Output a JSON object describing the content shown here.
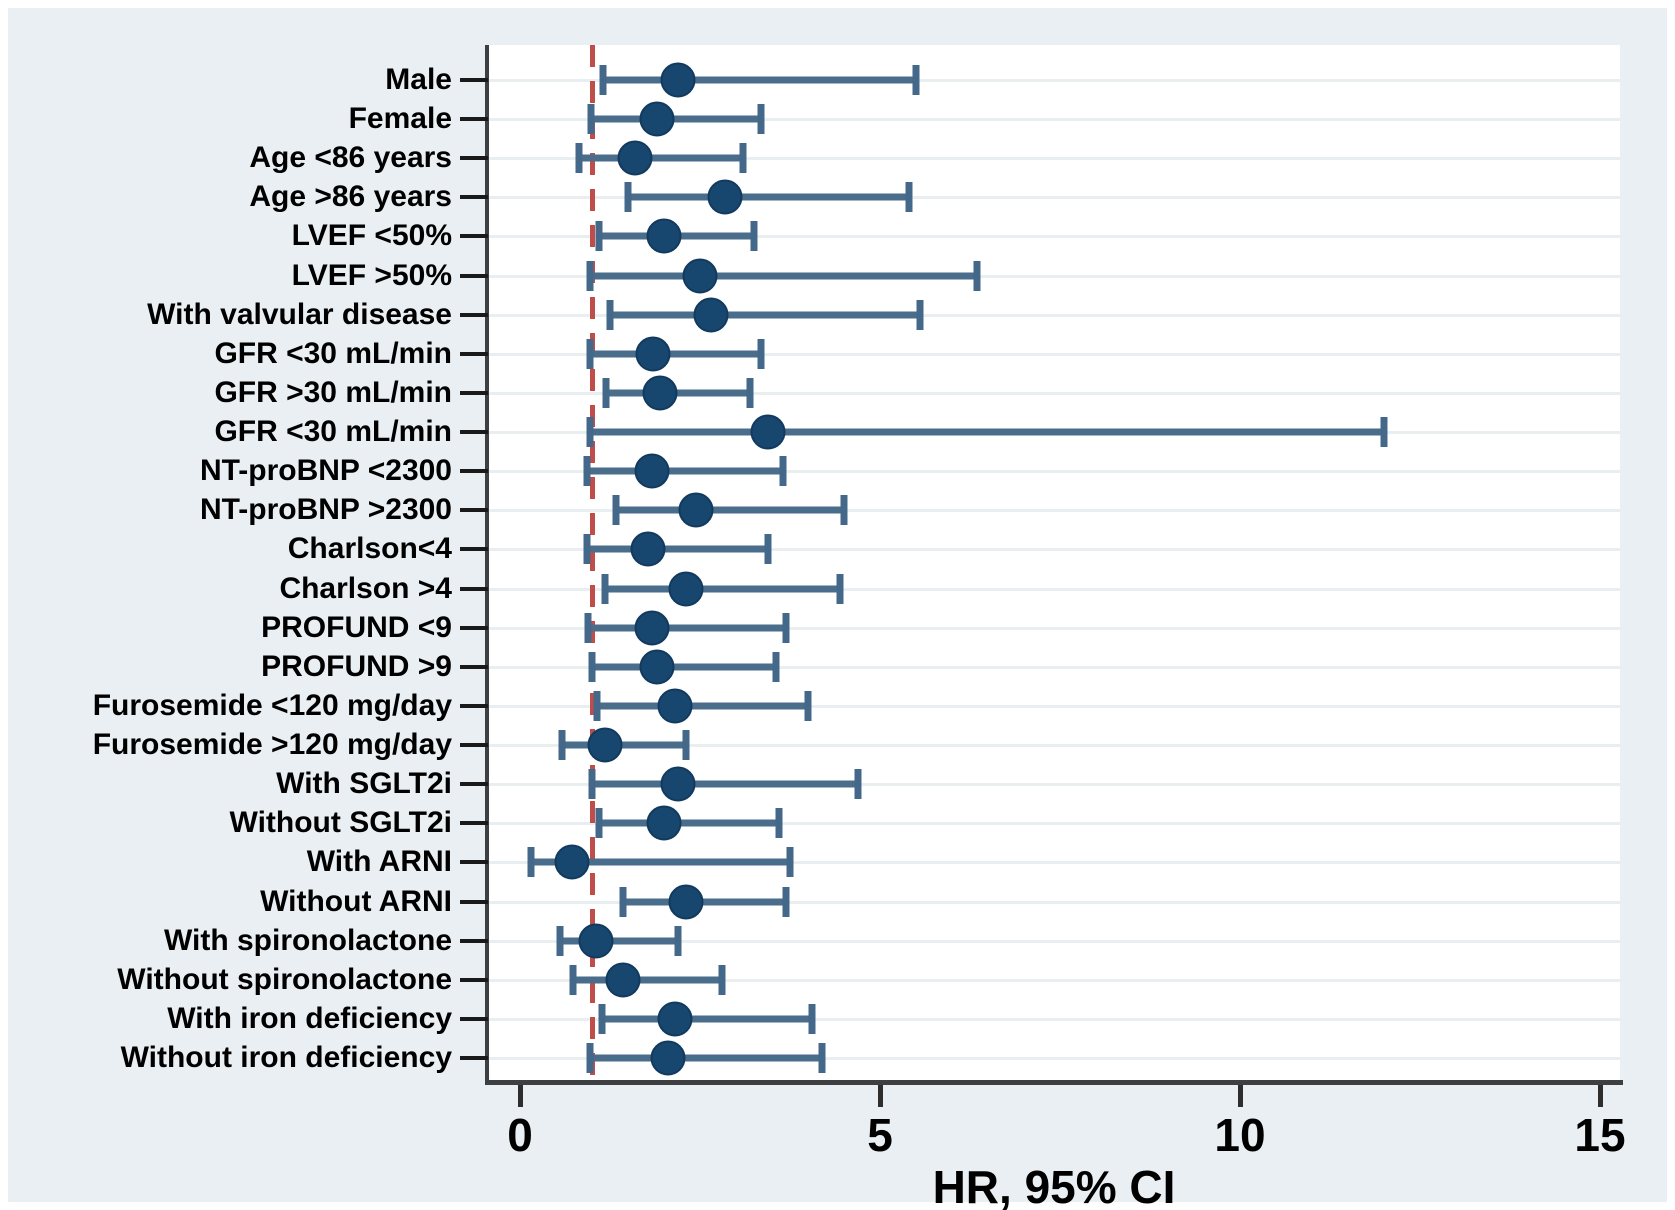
{
  "figure": {
    "background_color": "#e9eff2",
    "plot_background_color": "#ffffff",
    "border_color": "#ffffff"
  },
  "chart_data": {
    "type": "scatter",
    "subtype": "forest-plot",
    "title": "",
    "xlabel": "HR, 95% CI",
    "ylabel": "",
    "x_ticks": [
      0,
      5,
      10,
      15
    ],
    "xlim": [
      -0.45,
      15.3
    ],
    "reference_line_x": 1,
    "grid": "horizontal-light",
    "legend": "none",
    "colors": {
      "point": "#17466f",
      "ci_line": "#4a6d8c",
      "reference_line": "#bf4d49",
      "axis": "#3d3f41",
      "gridline": "#e9eef1",
      "label_text": "#000000"
    },
    "rows": [
      {
        "label": "Male",
        "hr": 2.2,
        "ci_low": 1.15,
        "ci_high": 5.5
      },
      {
        "label": "Female",
        "hr": 1.9,
        "ci_low": 0.98,
        "ci_high": 3.35
      },
      {
        "label": "Age <86 years",
        "hr": 1.6,
        "ci_low": 0.82,
        "ci_high": 3.1
      },
      {
        "label": "Age >86 years",
        "hr": 2.85,
        "ci_low": 1.5,
        "ci_high": 5.4
      },
      {
        "label": "LVEF <50%",
        "hr": 2.0,
        "ci_low": 1.1,
        "ci_high": 3.25
      },
      {
        "label": "LVEF >50%",
        "hr": 2.5,
        "ci_low": 0.97,
        "ci_high": 6.35
      },
      {
        "label": "With valvular disease",
        "hr": 2.65,
        "ci_low": 1.25,
        "ci_high": 5.55
      },
      {
        "label": "GFR <30 mL/min",
        "hr": 1.85,
        "ci_low": 0.97,
        "ci_high": 3.35
      },
      {
        "label": "GFR >30 mL/min",
        "hr": 1.95,
        "ci_low": 1.2,
        "ci_high": 3.2
      },
      {
        "label": "GFR <30 mL/min",
        "hr": 3.45,
        "ci_low": 0.97,
        "ci_high": 12.0
      },
      {
        "label": "NT-proBNP <2300",
        "hr": 1.83,
        "ci_low": 0.93,
        "ci_high": 3.65
      },
      {
        "label": "NT-proBNP >2300",
        "hr": 2.45,
        "ci_low": 1.33,
        "ci_high": 4.5
      },
      {
        "label": "Charlson<4",
        "hr": 1.78,
        "ci_low": 0.93,
        "ci_high": 3.45
      },
      {
        "label": "Charlson >4",
        "hr": 2.3,
        "ci_low": 1.18,
        "ci_high": 4.45
      },
      {
        "label": "PROFUND <9",
        "hr": 1.83,
        "ci_low": 0.94,
        "ci_high": 3.7
      },
      {
        "label": "PROFUND >9",
        "hr": 1.9,
        "ci_low": 1.0,
        "ci_high": 3.55
      },
      {
        "label": "Furosemide <120 mg/day",
        "hr": 2.15,
        "ci_low": 1.07,
        "ci_high": 4.0
      },
      {
        "label": "Furosemide >120 mg/day",
        "hr": 1.18,
        "ci_low": 0.58,
        "ci_high": 2.3
      },
      {
        "label": "With SGLT2i",
        "hr": 2.2,
        "ci_low": 1.0,
        "ci_high": 4.7
      },
      {
        "label": "Without SGLT2i",
        "hr": 2.0,
        "ci_low": 1.1,
        "ci_high": 3.6
      },
      {
        "label": "With ARNI",
        "hr": 0.72,
        "ci_low": 0.15,
        "ci_high": 3.75
      },
      {
        "label": "Without ARNI",
        "hr": 2.3,
        "ci_low": 1.43,
        "ci_high": 3.7
      },
      {
        "label": "With spironolactone",
        "hr": 1.05,
        "ci_low": 0.55,
        "ci_high": 2.2
      },
      {
        "label": "Without spironolactone",
        "hr": 1.43,
        "ci_low": 0.74,
        "ci_high": 2.8
      },
      {
        "label": "With iron deficiency",
        "hr": 2.15,
        "ci_low": 1.14,
        "ci_high": 4.05
      },
      {
        "label": "Without iron deficiency",
        "hr": 2.05,
        "ci_low": 0.97,
        "ci_high": 4.2
      }
    ]
  }
}
